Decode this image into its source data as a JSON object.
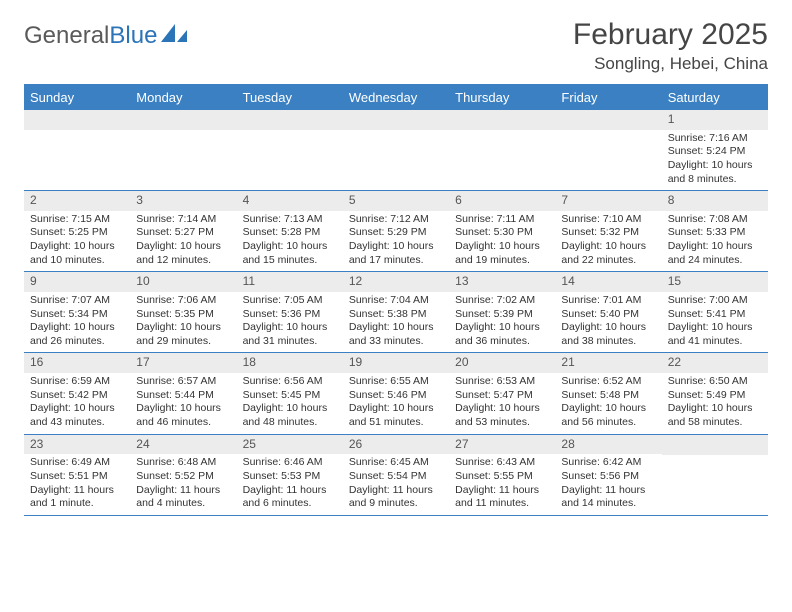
{
  "brand": {
    "part1": "General",
    "part2": "Blue"
  },
  "title": "February 2025",
  "location": "Songling, Hebei, China",
  "colors": {
    "header_bg": "#3a80c2",
    "header_text": "#ffffff",
    "daynum_bg": "#ececec",
    "text": "#333333",
    "brand_gray": "#5a5a5a",
    "brand_blue": "#2b74b8"
  },
  "day_labels": [
    "Sunday",
    "Monday",
    "Tuesday",
    "Wednesday",
    "Thursday",
    "Friday",
    "Saturday"
  ],
  "weeks": [
    [
      {
        "n": "",
        "sr": "",
        "ss": "",
        "dl": ""
      },
      {
        "n": "",
        "sr": "",
        "ss": "",
        "dl": ""
      },
      {
        "n": "",
        "sr": "",
        "ss": "",
        "dl": ""
      },
      {
        "n": "",
        "sr": "",
        "ss": "",
        "dl": ""
      },
      {
        "n": "",
        "sr": "",
        "ss": "",
        "dl": ""
      },
      {
        "n": "",
        "sr": "",
        "ss": "",
        "dl": ""
      },
      {
        "n": "1",
        "sr": "Sunrise: 7:16 AM",
        "ss": "Sunset: 5:24 PM",
        "dl": "Daylight: 10 hours and 8 minutes."
      }
    ],
    [
      {
        "n": "2",
        "sr": "Sunrise: 7:15 AM",
        "ss": "Sunset: 5:25 PM",
        "dl": "Daylight: 10 hours and 10 minutes."
      },
      {
        "n": "3",
        "sr": "Sunrise: 7:14 AM",
        "ss": "Sunset: 5:27 PM",
        "dl": "Daylight: 10 hours and 12 minutes."
      },
      {
        "n": "4",
        "sr": "Sunrise: 7:13 AM",
        "ss": "Sunset: 5:28 PM",
        "dl": "Daylight: 10 hours and 15 minutes."
      },
      {
        "n": "5",
        "sr": "Sunrise: 7:12 AM",
        "ss": "Sunset: 5:29 PM",
        "dl": "Daylight: 10 hours and 17 minutes."
      },
      {
        "n": "6",
        "sr": "Sunrise: 7:11 AM",
        "ss": "Sunset: 5:30 PM",
        "dl": "Daylight: 10 hours and 19 minutes."
      },
      {
        "n": "7",
        "sr": "Sunrise: 7:10 AM",
        "ss": "Sunset: 5:32 PM",
        "dl": "Daylight: 10 hours and 22 minutes."
      },
      {
        "n": "8",
        "sr": "Sunrise: 7:08 AM",
        "ss": "Sunset: 5:33 PM",
        "dl": "Daylight: 10 hours and 24 minutes."
      }
    ],
    [
      {
        "n": "9",
        "sr": "Sunrise: 7:07 AM",
        "ss": "Sunset: 5:34 PM",
        "dl": "Daylight: 10 hours and 26 minutes."
      },
      {
        "n": "10",
        "sr": "Sunrise: 7:06 AM",
        "ss": "Sunset: 5:35 PM",
        "dl": "Daylight: 10 hours and 29 minutes."
      },
      {
        "n": "11",
        "sr": "Sunrise: 7:05 AM",
        "ss": "Sunset: 5:36 PM",
        "dl": "Daylight: 10 hours and 31 minutes."
      },
      {
        "n": "12",
        "sr": "Sunrise: 7:04 AM",
        "ss": "Sunset: 5:38 PM",
        "dl": "Daylight: 10 hours and 33 minutes."
      },
      {
        "n": "13",
        "sr": "Sunrise: 7:02 AM",
        "ss": "Sunset: 5:39 PM",
        "dl": "Daylight: 10 hours and 36 minutes."
      },
      {
        "n": "14",
        "sr": "Sunrise: 7:01 AM",
        "ss": "Sunset: 5:40 PM",
        "dl": "Daylight: 10 hours and 38 minutes."
      },
      {
        "n": "15",
        "sr": "Sunrise: 7:00 AM",
        "ss": "Sunset: 5:41 PM",
        "dl": "Daylight: 10 hours and 41 minutes."
      }
    ],
    [
      {
        "n": "16",
        "sr": "Sunrise: 6:59 AM",
        "ss": "Sunset: 5:42 PM",
        "dl": "Daylight: 10 hours and 43 minutes."
      },
      {
        "n": "17",
        "sr": "Sunrise: 6:57 AM",
        "ss": "Sunset: 5:44 PM",
        "dl": "Daylight: 10 hours and 46 minutes."
      },
      {
        "n": "18",
        "sr": "Sunrise: 6:56 AM",
        "ss": "Sunset: 5:45 PM",
        "dl": "Daylight: 10 hours and 48 minutes."
      },
      {
        "n": "19",
        "sr": "Sunrise: 6:55 AM",
        "ss": "Sunset: 5:46 PM",
        "dl": "Daylight: 10 hours and 51 minutes."
      },
      {
        "n": "20",
        "sr": "Sunrise: 6:53 AM",
        "ss": "Sunset: 5:47 PM",
        "dl": "Daylight: 10 hours and 53 minutes."
      },
      {
        "n": "21",
        "sr": "Sunrise: 6:52 AM",
        "ss": "Sunset: 5:48 PM",
        "dl": "Daylight: 10 hours and 56 minutes."
      },
      {
        "n": "22",
        "sr": "Sunrise: 6:50 AM",
        "ss": "Sunset: 5:49 PM",
        "dl": "Daylight: 10 hours and 58 minutes."
      }
    ],
    [
      {
        "n": "23",
        "sr": "Sunrise: 6:49 AM",
        "ss": "Sunset: 5:51 PM",
        "dl": "Daylight: 11 hours and 1 minute."
      },
      {
        "n": "24",
        "sr": "Sunrise: 6:48 AM",
        "ss": "Sunset: 5:52 PM",
        "dl": "Daylight: 11 hours and 4 minutes."
      },
      {
        "n": "25",
        "sr": "Sunrise: 6:46 AM",
        "ss": "Sunset: 5:53 PM",
        "dl": "Daylight: 11 hours and 6 minutes."
      },
      {
        "n": "26",
        "sr": "Sunrise: 6:45 AM",
        "ss": "Sunset: 5:54 PM",
        "dl": "Daylight: 11 hours and 9 minutes."
      },
      {
        "n": "27",
        "sr": "Sunrise: 6:43 AM",
        "ss": "Sunset: 5:55 PM",
        "dl": "Daylight: 11 hours and 11 minutes."
      },
      {
        "n": "28",
        "sr": "Sunrise: 6:42 AM",
        "ss": "Sunset: 5:56 PM",
        "dl": "Daylight: 11 hours and 14 minutes."
      },
      {
        "n": "",
        "sr": "",
        "ss": "",
        "dl": ""
      }
    ]
  ]
}
